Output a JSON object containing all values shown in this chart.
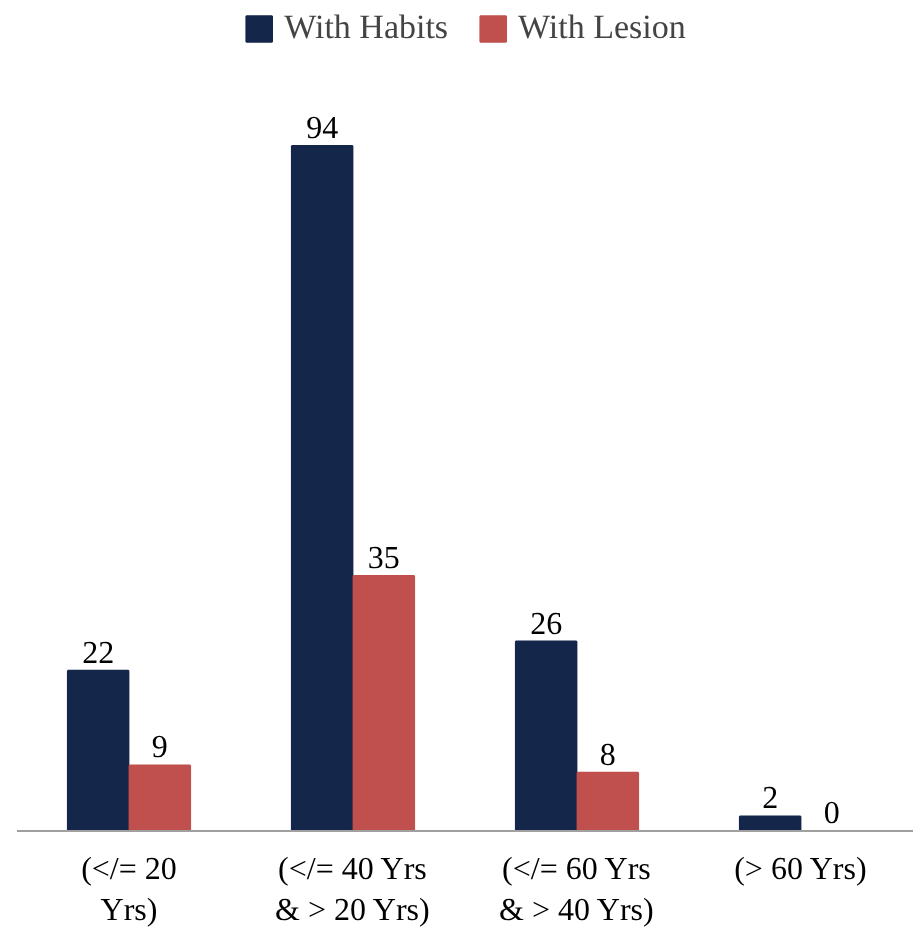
{
  "chart_data": {
    "type": "bar",
    "data_labels": true,
    "legend": "top",
    "categories": [
      "(</= 20 Yrs)",
      "(</= 40 Yrs & > 20 Yrs)",
      "(</= 60 Yrs & > 40 Yrs)",
      "(> 60 Yrs)"
    ],
    "series": [
      {
        "name": "With Habits",
        "color": "#14264a",
        "values": [
          22,
          94,
          26,
          2
        ]
      },
      {
        "name": "With Lesion",
        "color": "#c0504d",
        "values": [
          9,
          35,
          8,
          0
        ]
      }
    ]
  }
}
